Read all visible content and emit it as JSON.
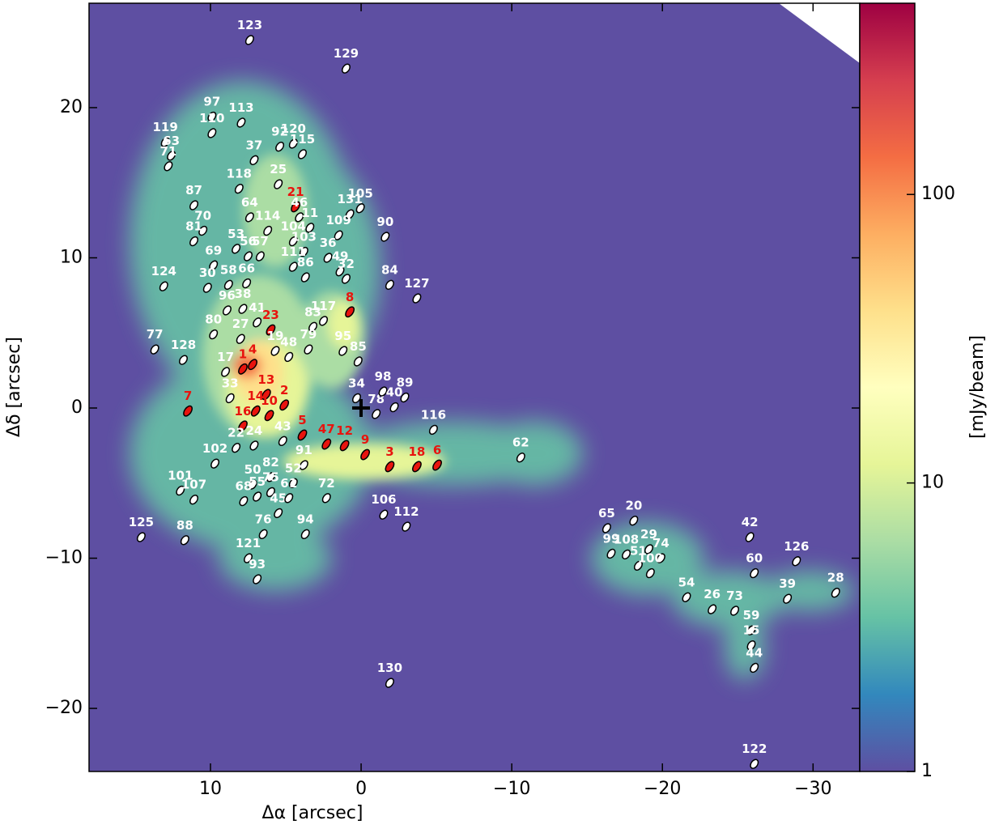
{
  "chart_data": {
    "type": "source-map",
    "xlabel": "Δα [arcsec]",
    "ylabel": "Δδ [arcsec]",
    "xlim": [
      18.06,
      -33.1
    ],
    "ylim": [
      -24.2,
      26.95
    ],
    "xticks": [
      {
        "value": 10,
        "label": "10"
      },
      {
        "value": 0,
        "label": "0"
      },
      {
        "value": -10,
        "label": "−10"
      },
      {
        "value": -20,
        "label": "−20"
      },
      {
        "value": -30,
        "label": "−30"
      }
    ],
    "yticks": [
      {
        "value": 20,
        "label": "20"
      },
      {
        "value": 10,
        "label": "10"
      },
      {
        "value": 0,
        "label": "0"
      },
      {
        "value": -10,
        "label": "−10"
      },
      {
        "value": -20,
        "label": "−20"
      }
    ],
    "colorbar": {
      "label": "[mJy/beam]",
      "scale": "log",
      "lim": [
        1,
        460
      ],
      "ticks": [
        1,
        10,
        100
      ]
    },
    "sources": [
      {
        "label": "123",
        "x": 7.4,
        "y": 24.5,
        "color": "#ffffff"
      },
      {
        "label": "129",
        "x": 1.0,
        "y": 22.6,
        "color": "#ffffff"
      },
      {
        "label": "97",
        "x": 9.9,
        "y": 19.4,
        "color": "#ffffff"
      },
      {
        "label": "113",
        "x": 7.96,
        "y": 19.0,
        "color": "#ffffff"
      },
      {
        "label": "110",
        "x": 9.9,
        "y": 18.3,
        "color": "#ffffff"
      },
      {
        "label": "119",
        "x": 13.0,
        "y": 17.7,
        "color": "#ffffff"
      },
      {
        "label": "63",
        "x": 12.6,
        "y": 16.8,
        "color": "#ffffff"
      },
      {
        "label": "71",
        "x": 12.8,
        "y": 16.1,
        "color": "#ffffff"
      },
      {
        "label": "37",
        "x": 7.1,
        "y": 16.5,
        "color": "#ffffff"
      },
      {
        "label": "92",
        "x": 5.4,
        "y": 17.4,
        "color": "#ffffff"
      },
      {
        "label": "120",
        "x": 4.5,
        "y": 17.6,
        "color": "#ffffff"
      },
      {
        "label": "115",
        "x": 3.9,
        "y": 16.9,
        "color": "#ffffff"
      },
      {
        "label": "118",
        "x": 8.1,
        "y": 14.6,
        "color": "#ffffff"
      },
      {
        "label": "25",
        "x": 5.5,
        "y": 14.9,
        "color": "#ffffff"
      },
      {
        "label": "21",
        "x": 4.35,
        "y": 13.4,
        "color": "#e8140e"
      },
      {
        "label": "46",
        "x": 4.1,
        "y": 12.7,
        "color": "#ffffff"
      },
      {
        "label": "11",
        "x": 3.4,
        "y": 12.0,
        "color": "#ffffff"
      },
      {
        "label": "131",
        "x": 0.75,
        "y": 12.9,
        "color": "#ffffff"
      },
      {
        "label": "105",
        "x": 0.05,
        "y": 13.3,
        "color": "#ffffff"
      },
      {
        "label": "87",
        "x": 11.1,
        "y": 13.5,
        "color": "#ffffff"
      },
      {
        "label": "64",
        "x": 7.4,
        "y": 12.7,
        "color": "#ffffff"
      },
      {
        "label": "114",
        "x": 6.2,
        "y": 11.8,
        "color": "#ffffff"
      },
      {
        "label": "104",
        "x": 4.5,
        "y": 11.1,
        "color": "#ffffff"
      },
      {
        "label": "109",
        "x": 1.5,
        "y": 11.5,
        "color": "#ffffff"
      },
      {
        "label": "90",
        "x": -1.6,
        "y": 11.4,
        "color": "#ffffff"
      },
      {
        "label": "70",
        "x": 10.5,
        "y": 11.8,
        "color": "#ffffff"
      },
      {
        "label": "81",
        "x": 11.1,
        "y": 11.1,
        "color": "#ffffff"
      },
      {
        "label": "53",
        "x": 8.3,
        "y": 10.6,
        "color": "#ffffff"
      },
      {
        "label": "57",
        "x": 6.7,
        "y": 10.1,
        "color": "#ffffff"
      },
      {
        "label": "103",
        "x": 3.8,
        "y": 10.4,
        "color": "#ffffff"
      },
      {
        "label": "36",
        "x": 2.2,
        "y": 10.0,
        "color": "#ffffff"
      },
      {
        "label": "56",
        "x": 7.5,
        "y": 10.1,
        "color": "#ffffff"
      },
      {
        "label": "69",
        "x": 9.8,
        "y": 9.5,
        "color": "#ffffff"
      },
      {
        "label": "111",
        "x": 4.5,
        "y": 9.4,
        "color": "#ffffff"
      },
      {
        "label": "86",
        "x": 3.7,
        "y": 8.7,
        "color": "#ffffff"
      },
      {
        "label": "49",
        "x": 1.4,
        "y": 9.1,
        "color": "#ffffff"
      },
      {
        "label": "32",
        "x": 1.0,
        "y": 8.6,
        "color": "#ffffff"
      },
      {
        "label": "84",
        "x": -1.9,
        "y": 8.2,
        "color": "#ffffff"
      },
      {
        "label": "127",
        "x": -3.7,
        "y": 7.3,
        "color": "#ffffff"
      },
      {
        "label": "124",
        "x": 13.1,
        "y": 8.1,
        "color": "#ffffff"
      },
      {
        "label": "30",
        "x": 10.2,
        "y": 8.0,
        "color": "#ffffff"
      },
      {
        "label": "58",
        "x": 8.8,
        "y": 8.2,
        "color": "#ffffff"
      },
      {
        "label": "66",
        "x": 7.6,
        "y": 8.3,
        "color": "#ffffff"
      },
      {
        "label": "38",
        "x": 7.85,
        "y": 6.6,
        "color": "#ffffff"
      },
      {
        "label": "96",
        "x": 8.9,
        "y": 6.5,
        "color": "#ffffff"
      },
      {
        "label": "41",
        "x": 6.9,
        "y": 5.7,
        "color": "#ffffff"
      },
      {
        "label": "23",
        "x": 6.0,
        "y": 5.2,
        "color": "#e8140e"
      },
      {
        "label": "83",
        "x": 3.2,
        "y": 5.4,
        "color": "#ffffff"
      },
      {
        "label": "117",
        "x": 2.5,
        "y": 5.8,
        "color": "#ffffff"
      },
      {
        "label": "8",
        "x": 0.75,
        "y": 6.4,
        "color": "#e8140e"
      },
      {
        "label": "80",
        "x": 9.8,
        "y": 4.9,
        "color": "#ffffff"
      },
      {
        "label": "27",
        "x": 8.0,
        "y": 4.6,
        "color": "#ffffff"
      },
      {
        "label": "19",
        "x": 5.7,
        "y": 3.8,
        "color": "#ffffff"
      },
      {
        "label": "48",
        "x": 4.8,
        "y": 3.4,
        "color": "#ffffff"
      },
      {
        "label": "79",
        "x": 3.5,
        "y": 3.9,
        "color": "#ffffff"
      },
      {
        "label": "95",
        "x": 1.2,
        "y": 3.8,
        "color": "#ffffff"
      },
      {
        "label": "85",
        "x": 0.2,
        "y": 3.1,
        "color": "#ffffff"
      },
      {
        "label": "77",
        "x": 13.7,
        "y": 3.9,
        "color": "#ffffff"
      },
      {
        "label": "128",
        "x": 11.8,
        "y": 3.2,
        "color": "#ffffff"
      },
      {
        "label": "17",
        "x": 9.0,
        "y": 2.4,
        "color": "#ffffff"
      },
      {
        "label": "1",
        "x": 7.85,
        "y": 2.6,
        "color": "#e8140e"
      },
      {
        "label": "4",
        "x": 7.2,
        "y": 2.9,
        "color": "#e8140e"
      },
      {
        "label": "33",
        "x": 8.7,
        "y": 0.65,
        "color": "#ffffff"
      },
      {
        "label": "13",
        "x": 6.3,
        "y": 0.9,
        "color": "#e8140e"
      },
      {
        "label": "14",
        "x": 7.0,
        "y": -0.2,
        "color": "#e8140e"
      },
      {
        "label": "2",
        "x": 5.1,
        "y": 0.2,
        "color": "#e8140e"
      },
      {
        "label": "10",
        "x": 6.1,
        "y": -0.5,
        "color": "#e8140e"
      },
      {
        "label": "7",
        "x": 11.5,
        "y": -0.2,
        "color": "#e8140e"
      },
      {
        "label": "34",
        "x": 0.3,
        "y": 0.65,
        "color": "#ffffff"
      },
      {
        "label": "78",
        "x": -1.0,
        "y": -0.4,
        "color": "#ffffff"
      },
      {
        "label": "98",
        "x": -1.45,
        "y": 1.1,
        "color": "#ffffff"
      },
      {
        "label": "40",
        "x": -2.2,
        "y": 0.05,
        "color": "#ffffff"
      },
      {
        "label": "89",
        "x": -2.9,
        "y": 0.7,
        "color": "#ffffff"
      },
      {
        "label": "116",
        "x": -4.8,
        "y": -1.45,
        "color": "#ffffff"
      },
      {
        "label": "16",
        "x": 7.85,
        "y": -1.2,
        "color": "#e8140e"
      },
      {
        "label": "22",
        "x": 8.3,
        "y": -2.65,
        "color": "#ffffff"
      },
      {
        "label": "24",
        "x": 7.1,
        "y": -2.5,
        "color": "#ffffff"
      },
      {
        "label": "43",
        "x": 5.2,
        "y": -2.2,
        "color": "#ffffff"
      },
      {
        "label": "5",
        "x": 3.9,
        "y": -1.8,
        "color": "#e8140e"
      },
      {
        "label": "47",
        "x": 2.3,
        "y": -2.4,
        "color": "#e8140e"
      },
      {
        "label": "12",
        "x": 1.1,
        "y": -2.5,
        "color": "#e8140e"
      },
      {
        "label": "9",
        "x": -0.27,
        "y": -3.1,
        "color": "#e8140e"
      },
      {
        "label": "3",
        "x": -1.9,
        "y": -3.9,
        "color": "#e8140e"
      },
      {
        "label": "18",
        "x": -3.7,
        "y": -3.9,
        "color": "#e8140e"
      },
      {
        "label": "6",
        "x": -5.05,
        "y": -3.8,
        "color": "#e8140e"
      },
      {
        "label": "62",
        "x": -10.6,
        "y": -3.3,
        "color": "#ffffff"
      },
      {
        "label": "102",
        "x": 9.7,
        "y": -3.7,
        "color": "#ffffff"
      },
      {
        "label": "91",
        "x": 3.8,
        "y": -3.8,
        "color": "#ffffff"
      },
      {
        "label": "82",
        "x": 6.0,
        "y": -4.6,
        "color": "#ffffff"
      },
      {
        "label": "52",
        "x": 4.5,
        "y": -5.0,
        "color": "#ffffff"
      },
      {
        "label": "50",
        "x": 7.2,
        "y": -5.1,
        "color": "#ffffff"
      },
      {
        "label": "55",
        "x": 6.9,
        "y": -5.9,
        "color": "#ffffff"
      },
      {
        "label": "75",
        "x": 6.0,
        "y": -5.6,
        "color": "#ffffff"
      },
      {
        "label": "68",
        "x": 7.8,
        "y": -6.2,
        "color": "#ffffff"
      },
      {
        "label": "45",
        "x": 5.5,
        "y": -7.0,
        "color": "#ffffff"
      },
      {
        "label": "61",
        "x": 4.8,
        "y": -6.0,
        "color": "#ffffff"
      },
      {
        "label": "72",
        "x": 2.3,
        "y": -6.0,
        "color": "#ffffff"
      },
      {
        "label": "101",
        "x": 12.0,
        "y": -5.5,
        "color": "#ffffff"
      },
      {
        "label": "107",
        "x": 11.1,
        "y": -6.1,
        "color": "#ffffff"
      },
      {
        "label": "106",
        "x": -1.5,
        "y": -7.1,
        "color": "#ffffff"
      },
      {
        "label": "112",
        "x": -3.0,
        "y": -7.9,
        "color": "#ffffff"
      },
      {
        "label": "76",
        "x": 6.5,
        "y": -8.4,
        "color": "#ffffff"
      },
      {
        "label": "94",
        "x": 3.7,
        "y": -8.4,
        "color": "#ffffff"
      },
      {
        "label": "125",
        "x": 14.6,
        "y": -8.6,
        "color": "#ffffff"
      },
      {
        "label": "88",
        "x": 11.7,
        "y": -8.8,
        "color": "#ffffff"
      },
      {
        "label": "121",
        "x": 7.5,
        "y": -10.0,
        "color": "#ffffff"
      },
      {
        "label": "93",
        "x": 6.9,
        "y": -11.4,
        "color": "#ffffff"
      },
      {
        "label": "65",
        "x": -16.3,
        "y": -8.0,
        "color": "#ffffff"
      },
      {
        "label": "20",
        "x": -18.1,
        "y": -7.5,
        "color": "#ffffff"
      },
      {
        "label": "99",
        "x": -16.6,
        "y": -9.7,
        "color": "#ffffff"
      },
      {
        "label": "108",
        "x": -17.6,
        "y": -9.75,
        "color": "#ffffff"
      },
      {
        "label": "29",
        "x": -19.1,
        "y": -9.4,
        "color": "#ffffff"
      },
      {
        "label": "51",
        "x": -18.4,
        "y": -10.5,
        "color": "#ffffff"
      },
      {
        "label": "74",
        "x": -19.9,
        "y": -10.0,
        "color": "#ffffff"
      },
      {
        "label": "100",
        "x": -19.2,
        "y": -11.0,
        "color": "#ffffff"
      },
      {
        "label": "42",
        "x": -25.8,
        "y": -8.6,
        "color": "#ffffff"
      },
      {
        "label": "60",
        "x": -26.1,
        "y": -11.0,
        "color": "#ffffff"
      },
      {
        "label": "126",
        "x": -28.9,
        "y": -10.2,
        "color": "#ffffff"
      },
      {
        "label": "54",
        "x": -21.6,
        "y": -12.6,
        "color": "#ffffff"
      },
      {
        "label": "26",
        "x": -23.3,
        "y": -13.4,
        "color": "#ffffff"
      },
      {
        "label": "73",
        "x": -24.8,
        "y": -13.5,
        "color": "#ffffff"
      },
      {
        "label": "39",
        "x": -28.3,
        "y": -12.7,
        "color": "#ffffff"
      },
      {
        "label": "28",
        "x": -31.5,
        "y": -12.3,
        "color": "#ffffff"
      },
      {
        "label": "59",
        "x": -25.9,
        "y": -14.8,
        "color": "#ffffff"
      },
      {
        "label": "15",
        "x": -25.9,
        "y": -15.8,
        "color": "#ffffff"
      },
      {
        "label": "44",
        "x": -26.1,
        "y": -17.3,
        "color": "#ffffff"
      },
      {
        "label": "130",
        "x": -1.9,
        "y": -18.3,
        "color": "#ffffff"
      },
      {
        "label": "122",
        "x": -26.1,
        "y": -23.7,
        "color": "#ffffff"
      }
    ]
  }
}
